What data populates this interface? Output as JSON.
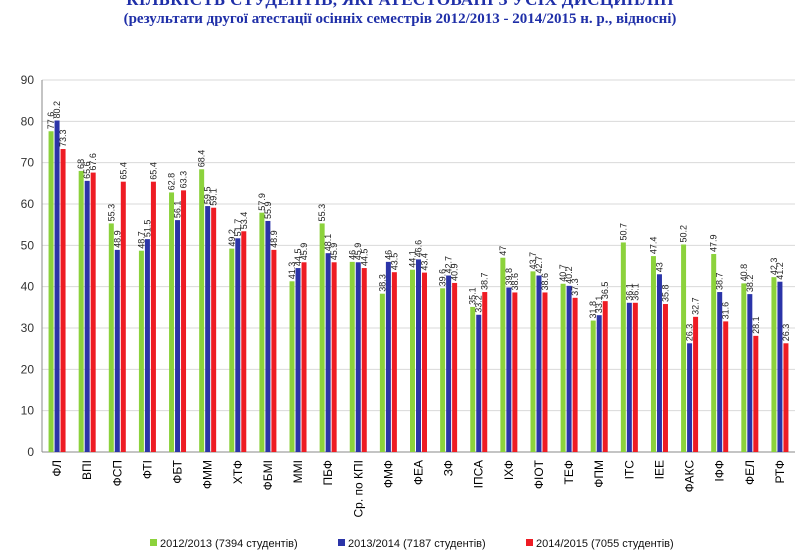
{
  "title": "КІЛЬКІСТЬ СТУДЕНТІВ, ЯКІ АТЕСТОВАНІ З УСІХ ДИСЦИПЛІН",
  "subtitle": "(результати другої атестації осінніх семестрів 2012/2013 - 2014/2015 н. р., відносні)",
  "chart_data": {
    "type": "bar",
    "title": "КІЛЬКІСТЬ СТУДЕНТІВ, ЯКІ АТЕСТОВАНІ З УСІХ ДИСЦИПЛІН",
    "subtitle": "(результати другої атестації осінніх семестрів 2012/2013 - 2014/2015 н. р., відносні)",
    "xlabel": "",
    "ylabel": "",
    "ylim": [
      0,
      90
    ],
    "yticks": [
      0,
      10,
      20,
      30,
      40,
      50,
      60,
      70,
      80,
      90
    ],
    "grid": true,
    "legend_position": "bottom",
    "categories": [
      "ФЛ",
      "ВПІ",
      "ФСП",
      "ФТІ",
      "ФБТ",
      "ФММ",
      "ХТФ",
      "ФБМІ",
      "ММІ",
      "ПБФ",
      "Ср. по КПІ",
      "ФМФ",
      "ФЕА",
      "ЗФ",
      "ІПСА",
      "ІХФ",
      "ФІОТ",
      "ТЕФ",
      "ФПМ",
      "ІТС",
      "ІЕЕ",
      "ФАКС",
      "ІФФ",
      "ФЕЛ",
      "РТФ"
    ],
    "series": [
      {
        "name": "2012/2013 (7394 студентів)",
        "color": "#8cd23c",
        "values": [
          77.6,
          68,
          55.3,
          48.7,
          62.8,
          68.4,
          49.2,
          57.9,
          41.3,
          55.3,
          46,
          38.3,
          44.1,
          39.6,
          35.1,
          47,
          43.7,
          40.7,
          31.8,
          50.7,
          47.4,
          50.2,
          47.9,
          40.8,
          42.3
        ],
        "labels": [
          "77.6",
          "68",
          "55.3",
          "48.7",
          "62.8",
          "68.4",
          "49.2",
          "57.9",
          "41.3",
          "55.3",
          "46",
          "38.3",
          "44.1",
          "39.6",
          "35.1",
          "47",
          "43.7",
          "40.7",
          "31.8",
          "50.7",
          "47.4",
          "50.2",
          "47.9",
          "40.8",
          "42.3"
        ]
      },
      {
        "name": "2013/2014 (7187 студентів)",
        "color": "#2b34a8",
        "values": [
          80.2,
          65.6,
          48.9,
          51.5,
          56.1,
          59.5,
          51.7,
          55.9,
          44.5,
          48.1,
          45.9,
          46,
          46.6,
          42.7,
          33.2,
          39.8,
          42.7,
          40.2,
          33.1,
          36.1,
          43,
          26.3,
          38.7,
          38.2,
          41.2
        ],
        "labels": [
          "80.2",
          "65.6",
          "48.9",
          "51.5",
          "56.1",
          "59.5",
          "51.7",
          "55.9",
          "44.5",
          "48.1",
          "45.9",
          "46",
          "46.6",
          "42.7",
          "33.2",
          "39.8",
          "42.7",
          "40.2",
          "33.1",
          "36.1",
          "43",
          "26.3",
          "38.7",
          "38.2",
          "41.2"
        ]
      },
      {
        "name": "2014/2015 (7055 студентів)",
        "color": "#ee1c24",
        "values": [
          73.3,
          67.6,
          65.4,
          65.4,
          63.3,
          59.1,
          53.4,
          48.9,
          45.9,
          45.9,
          44.5,
          43.5,
          43.4,
          40.9,
          38.7,
          38.6,
          38.6,
          37.3,
          36.5,
          36.1,
          35.8,
          32.7,
          31.6,
          28.1,
          26.3
        ],
        "labels": [
          "73.3",
          "67.6",
          "65.4",
          "65.4",
          "63.3",
          "59.1",
          "53.4",
          "48.9",
          "45.9",
          "45.9",
          "44.5",
          "43.5",
          "43.4",
          "40.9",
          "38.7",
          "38.6",
          "38.6",
          "37.3",
          "36.5",
          "36.1",
          "35.8",
          "32.7",
          "31.6",
          "28.1",
          "26.3"
        ]
      }
    ]
  }
}
